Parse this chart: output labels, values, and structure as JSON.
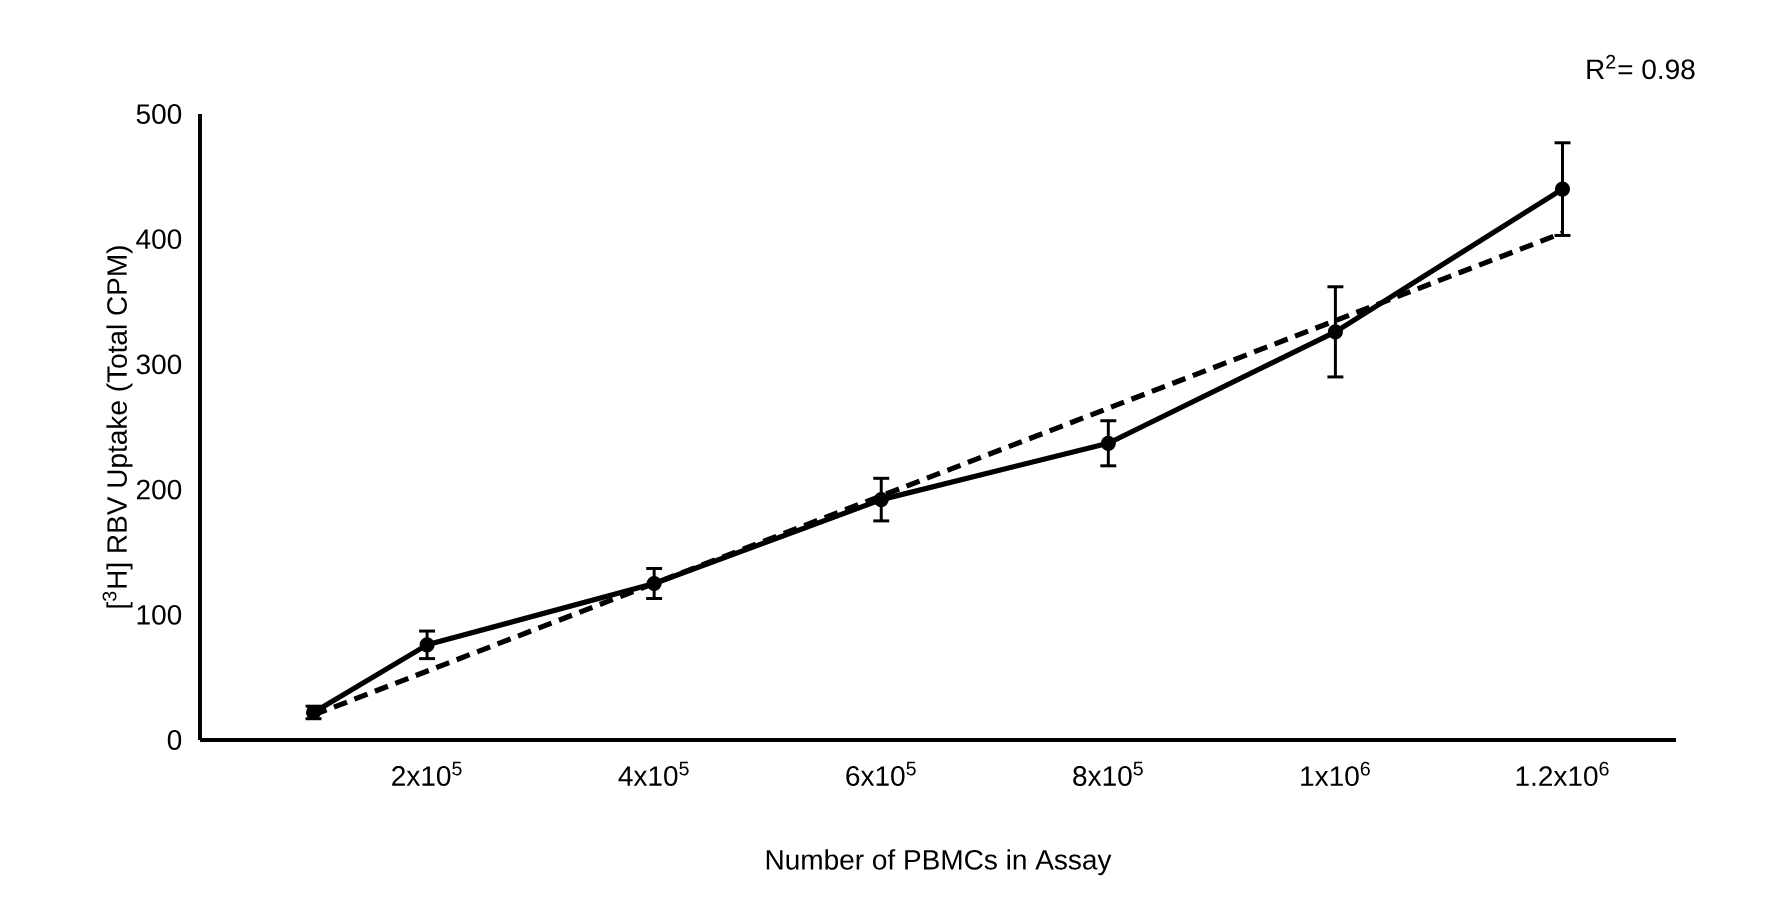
{
  "chart_data": {
    "type": "line",
    "xlabel": "Number of PBMCs in Assay",
    "ylabel": "[$^{3}$H] RBV Uptake  (Total CPM)",
    "annotations": [
      "R$^{2}$= 0.98"
    ],
    "xlim": [
      0,
      1300000
    ],
    "xticks": [
      {
        "value": 200000,
        "label": "2x10$^{5}$"
      },
      {
        "value": 400000,
        "label": "4x10$^{5}$"
      },
      {
        "value": 600000,
        "label": "6x10$^{5}$"
      },
      {
        "value": 800000,
        "label": "8x10$^{5}$"
      },
      {
        "value": 1000000,
        "label": "1x10$^{6}$"
      },
      {
        "value": 1200000,
        "label": "1.2x10$^{6}$"
      }
    ],
    "ylim": [
      0,
      500
    ],
    "yticks": [
      0,
      100,
      200,
      300,
      400,
      500
    ],
    "marker": "circle",
    "series": [
      {
        "color": "#000000",
        "line_style": "solid",
        "x": [
          100000,
          200000,
          400000,
          600000,
          800000,
          1000000,
          1200000
        ],
        "values": [
          22,
          76,
          125,
          192,
          237,
          326,
          440
        ],
        "errors": [
          5,
          11,
          12,
          17,
          18,
          36,
          37
        ]
      },
      {
        "color": "#000000",
        "line_style": "dashed",
        "marker": "none",
        "x": [
          100000,
          1200000
        ],
        "values": [
          20,
          405
        ]
      }
    ]
  }
}
